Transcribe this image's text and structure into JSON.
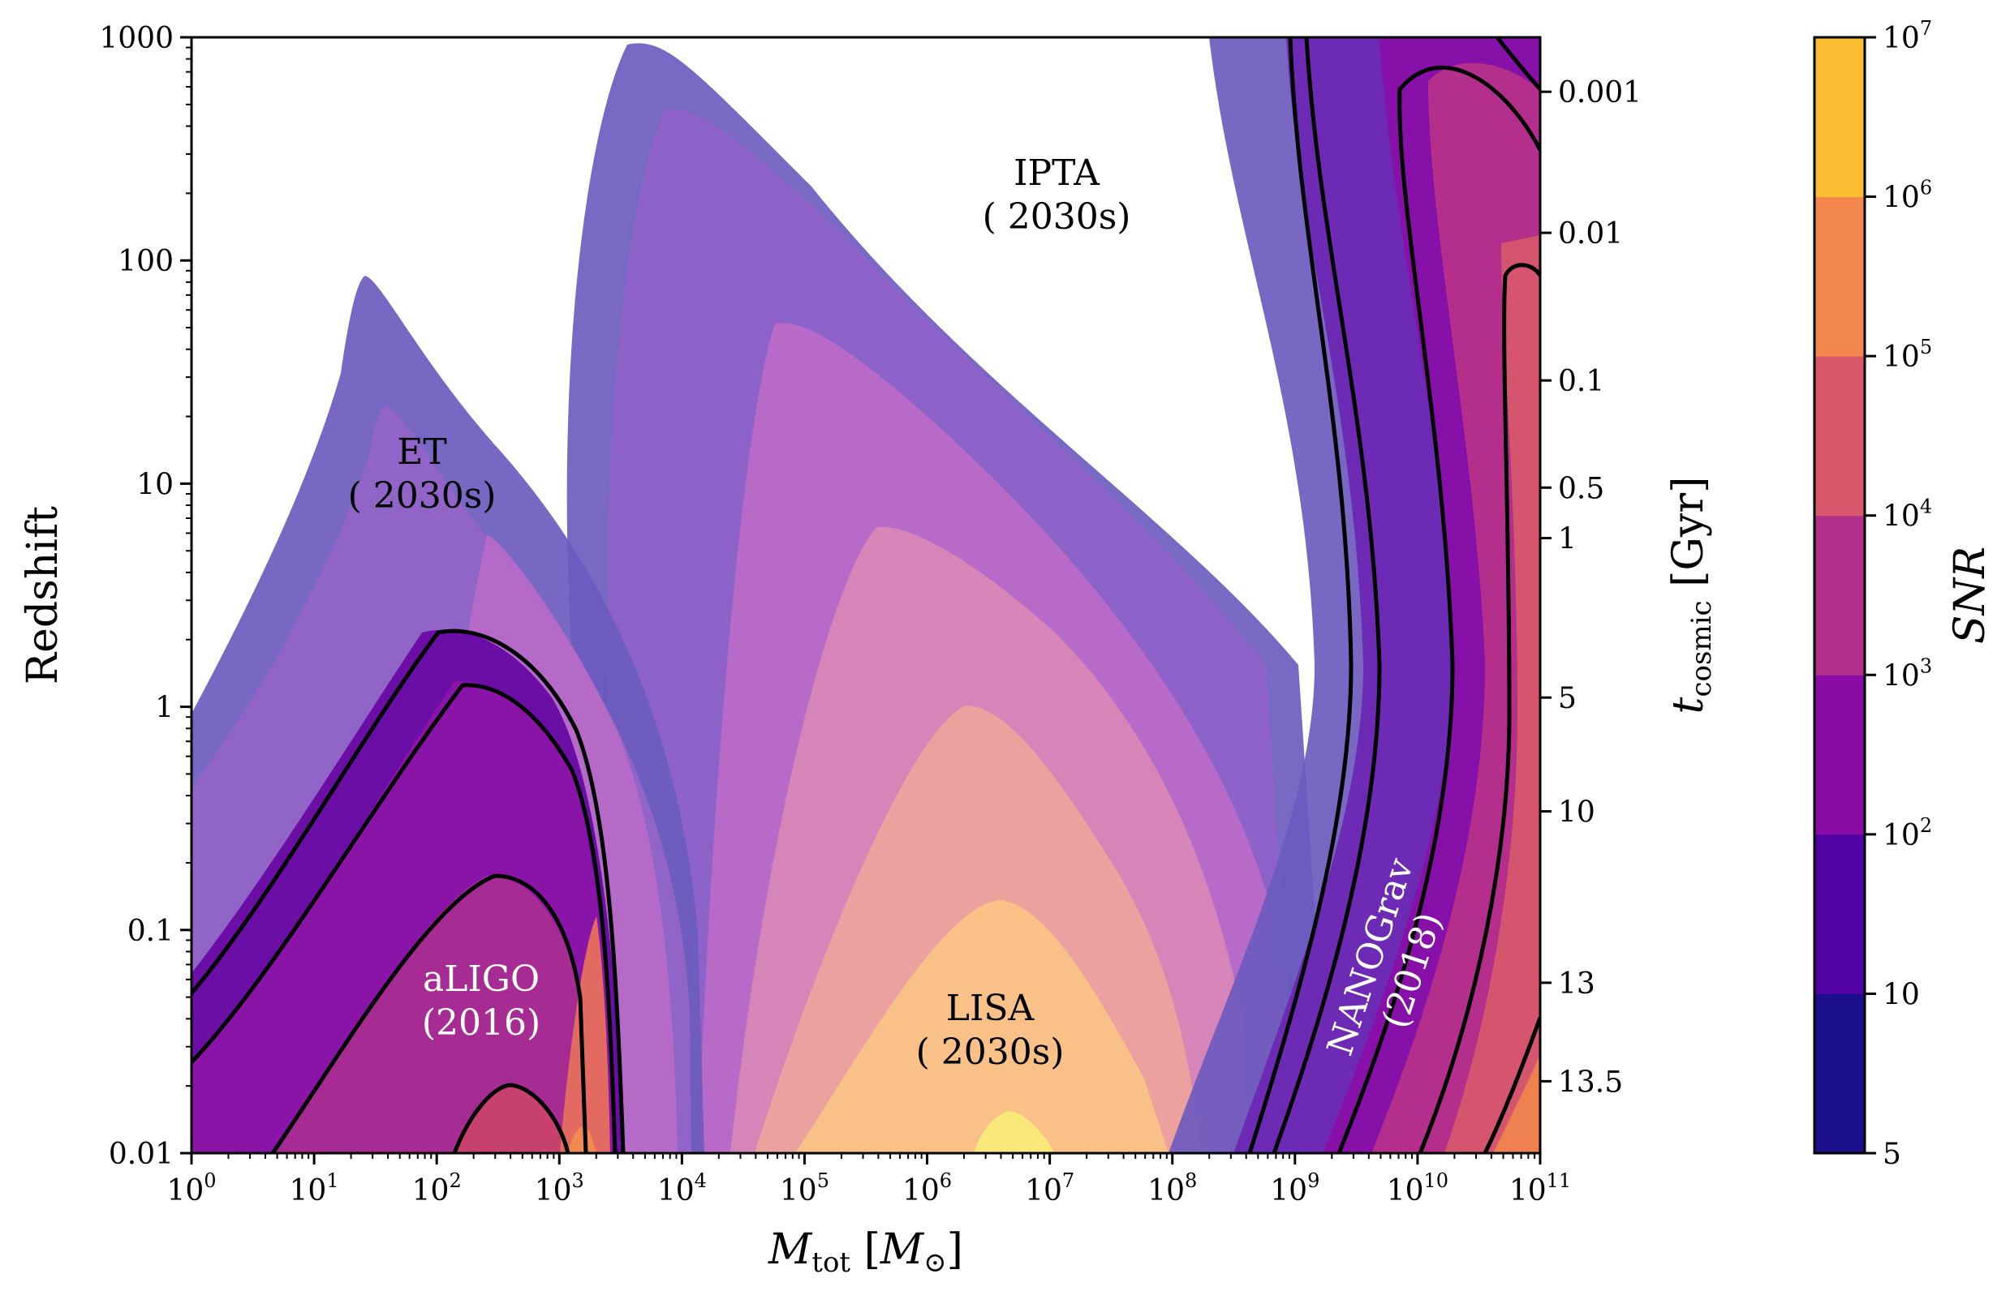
{
  "chart_data": {
    "type": "contour",
    "xlabel": {
      "main": "M",
      "sub": "tot",
      "bracket_open": "[",
      "unit_main": "M",
      "unit_sub": "⊙",
      "bracket_close": "]"
    },
    "ylabel": "Redshift",
    "y2label": {
      "main": "t",
      "sub": "cosmic",
      "unit": "[Gyr]"
    },
    "colorbar_label": "SNR",
    "x_scale": "log",
    "y_scale": "log",
    "xlim": [
      1,
      100000000000
    ],
    "ylim": [
      0.01,
      1000
    ],
    "x_ticks": [
      {
        "base": "10",
        "exp": "0"
      },
      {
        "base": "10",
        "exp": "1"
      },
      {
        "base": "10",
        "exp": "2"
      },
      {
        "base": "10",
        "exp": "3"
      },
      {
        "base": "10",
        "exp": "4"
      },
      {
        "base": "10",
        "exp": "5"
      },
      {
        "base": "10",
        "exp": "6"
      },
      {
        "base": "10",
        "exp": "7"
      },
      {
        "base": "10",
        "exp": "8"
      },
      {
        "base": "10",
        "exp": "9"
      },
      {
        "base": "10",
        "exp": "10"
      },
      {
        "base": "10",
        "exp": "11"
      }
    ],
    "y_ticks": [
      {
        "label": "1000",
        "value": 1000
      },
      {
        "label": "100",
        "value": 100
      },
      {
        "label": "10",
        "value": 10
      },
      {
        "label": "1",
        "value": 1
      },
      {
        "label": "0.1",
        "value": 0.1
      },
      {
        "label": "0.01",
        "value": 0.01
      }
    ],
    "y2_ticks": [
      {
        "label": "0.001",
        "redshift": 570
      },
      {
        "label": "0.01",
        "redshift": 133
      },
      {
        "label": "0.1",
        "redshift": 29
      },
      {
        "label": "0.5",
        "redshift": 9.6
      },
      {
        "label": "1",
        "redshift": 5.7
      },
      {
        "label": "5",
        "redshift": 1.1
      },
      {
        "label": "10",
        "redshift": 0.34
      },
      {
        "label": "13",
        "redshift": 0.058
      },
      {
        "label": "13.5",
        "redshift": 0.021
      }
    ],
    "colorbar": {
      "levels": [
        {
          "label": "5",
          "base": "",
          "exp": "",
          "value": 5
        },
        {
          "label": "10",
          "base": "",
          "exp": "",
          "value": 10
        },
        {
          "label": "",
          "base": "10",
          "exp": "2",
          "value": 100
        },
        {
          "label": "",
          "base": "10",
          "exp": "3",
          "value": 1000
        },
        {
          "label": "",
          "base": "10",
          "exp": "4",
          "value": 10000
        },
        {
          "label": "",
          "base": "10",
          "exp": "5",
          "value": 100000
        },
        {
          "label": "",
          "base": "10",
          "exp": "6",
          "value": 1000000
        },
        {
          "label": "",
          "base": "10",
          "exp": "7",
          "value": 10000000
        }
      ],
      "colors": [
        "#1c0f8c",
        "#5202a3",
        "#8a0ca7",
        "#b42e8c",
        "#d9586b",
        "#f3864c",
        "#fdbd32",
        "#f8e221"
      ]
    },
    "detectors": [
      {
        "name": "ET",
        "era": "( 2030s)",
        "peak_mass": 25,
        "peak_redshift": 85
      },
      {
        "name": "aLIGO",
        "era": "(2016)",
        "peak_mass": 150,
        "peak_redshift": 2.2
      },
      {
        "name": "LISA",
        "era": "( 2030s)",
        "peak_mass": 5000000,
        "peak_redshift": 0.015
      },
      {
        "name": "IPTA",
        "era": "( 2030s)",
        "peak_mass": 5000,
        "peak_redshift": 950
      },
      {
        "name": "NANOGrav",
        "era": "(2018)",
        "peak_mass": 10000000000,
        "peak_redshift": 0.01
      }
    ],
    "grid": false,
    "legend": "none"
  }
}
